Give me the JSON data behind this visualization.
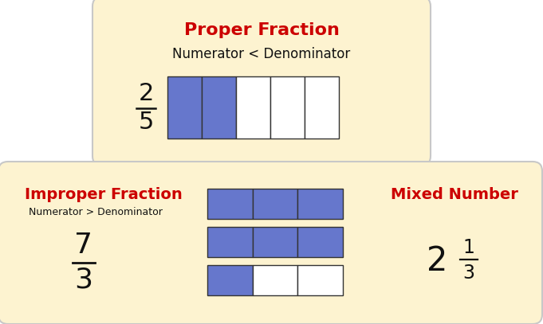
{
  "bg_color": "#ffffff",
  "box_fill": "#fdf3d0",
  "box_edge": "#c8c8c8",
  "blue_fill": "#6677cc",
  "white_fill": "#ffffff",
  "cell_edge": "#333333",
  "title_color": "#cc0000",
  "text_color": "#111111",
  "proper_title": "Proper Fraction",
  "proper_subtitle": "Numerator < Denominator",
  "proper_num": "2",
  "proper_den": "5",
  "improper_title": "Improper Fraction",
  "improper_subtitle": "Numerator > Denominator",
  "improper_num": "7",
  "improper_den": "3",
  "mixed_title": "Mixed Number",
  "mixed_whole": "2",
  "mixed_num": "1",
  "mixed_den": "3",
  "fig_w": 6.81,
  "fig_h": 4.07,
  "dpi": 100
}
